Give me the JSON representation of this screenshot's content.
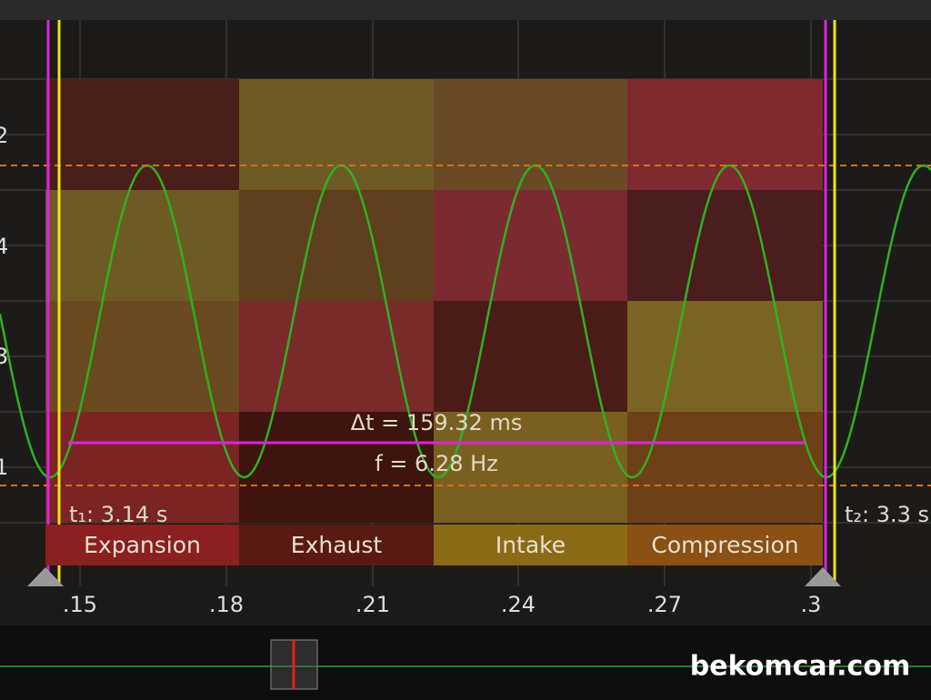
{
  "y_labels": [
    "2",
    "4",
    "3",
    "1"
  ],
  "x_labels": [
    ".15",
    ".18",
    ".21",
    ".24",
    ".27",
    ".3"
  ],
  "measurement": {
    "delta_t": "Δt = 159.32 ms",
    "frequency": "f = 6.28 Hz",
    "t1": "t₁: 3.14 s",
    "t2": "t₂: 3.3 s"
  },
  "strokes": [
    "Expansion",
    "Exhaust",
    "Intake",
    "Compression"
  ],
  "watermark": "bekomcar.com"
}
